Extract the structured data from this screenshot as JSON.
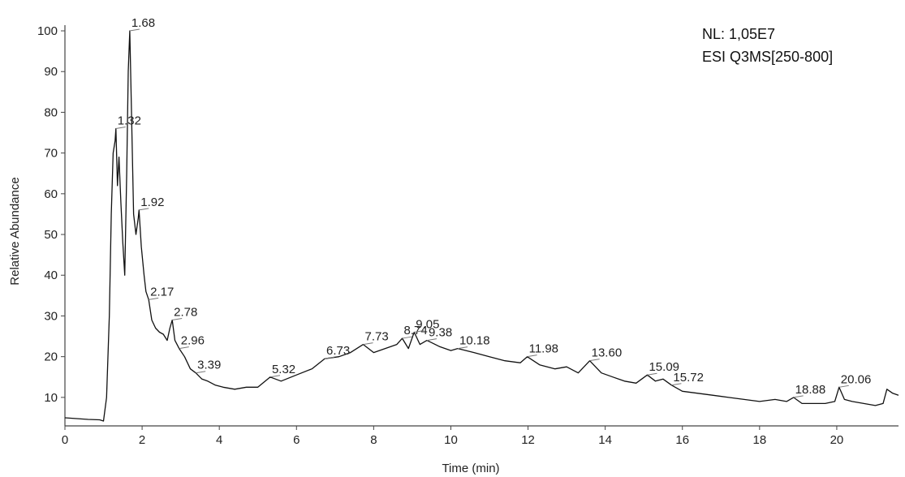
{
  "chart_data": {
    "type": "line",
    "title": "",
    "xlabel": "Time (min)",
    "ylabel": "Relative Abundance",
    "xlim": [
      0,
      21.6
    ],
    "ylim": [
      3,
      101
    ],
    "x_ticks": [
      0,
      2,
      4,
      6,
      8,
      10,
      12,
      14,
      16,
      18,
      20
    ],
    "y_ticks": [
      10,
      20,
      30,
      40,
      50,
      60,
      70,
      80,
      90,
      100
    ],
    "grid": false,
    "legend": "none",
    "annotations": [
      "NL: 1,05E7",
      "ESI Q3MS[250-800]"
    ],
    "line_color": "#111111",
    "peak_labels": [
      {
        "x": 1.32,
        "y": 76,
        "text": "1.32"
      },
      {
        "x": 1.68,
        "y": 100,
        "text": "1.68"
      },
      {
        "x": 1.92,
        "y": 56,
        "text": "1.92"
      },
      {
        "x": 2.17,
        "y": 34,
        "text": "2.17"
      },
      {
        "x": 2.78,
        "y": 29,
        "text": "2.78"
      },
      {
        "x": 2.96,
        "y": 22,
        "text": "2.96"
      },
      {
        "x": 3.39,
        "y": 16,
        "text": "3.39"
      },
      {
        "x": 5.32,
        "y": 15,
        "text": "5.32"
      },
      {
        "x": 6.73,
        "y": 19.5,
        "text": "6.73"
      },
      {
        "x": 7.73,
        "y": 23,
        "text": "7.73"
      },
      {
        "x": 8.74,
        "y": 24.5,
        "text": "8.74"
      },
      {
        "x": 9.05,
        "y": 26,
        "text": "9.05"
      },
      {
        "x": 9.38,
        "y": 24,
        "text": "9.38"
      },
      {
        "x": 10.18,
        "y": 22,
        "text": "10.18"
      },
      {
        "x": 11.98,
        "y": 20,
        "text": "11.98"
      },
      {
        "x": 13.6,
        "y": 19,
        "text": "13.60"
      },
      {
        "x": 15.09,
        "y": 15.5,
        "text": "15.09"
      },
      {
        "x": 15.72,
        "y": 13,
        "text": "15.72"
      },
      {
        "x": 18.88,
        "y": 10,
        "text": "18.88"
      },
      {
        "x": 20.06,
        "y": 12.5,
        "text": "20.06"
      }
    ],
    "series": [
      {
        "x": [
          0,
          0.3,
          0.6,
          0.9,
          1.0,
          1.08,
          1.15,
          1.2,
          1.25,
          1.3,
          1.32,
          1.36,
          1.4,
          1.45,
          1.5,
          1.55,
          1.6,
          1.64,
          1.68,
          1.72,
          1.78,
          1.84,
          1.9,
          1.92,
          1.98,
          2.05,
          2.1,
          2.17,
          2.25,
          2.35,
          2.45,
          2.55,
          2.65,
          2.72,
          2.78,
          2.85,
          2.96,
          3.1,
          3.25,
          3.39,
          3.55,
          3.7,
          3.9,
          4.1,
          4.4,
          4.7,
          5.0,
          5.32,
          5.6,
          6.0,
          6.4,
          6.73,
          7.1,
          7.4,
          7.73,
          8.0,
          8.3,
          8.6,
          8.74,
          8.9,
          9.05,
          9.2,
          9.38,
          9.7,
          10.0,
          10.18,
          10.6,
          11.0,
          11.4,
          11.8,
          11.98,
          12.3,
          12.7,
          13.0,
          13.3,
          13.6,
          13.9,
          14.2,
          14.5,
          14.8,
          15.09,
          15.3,
          15.5,
          15.72,
          16.0,
          16.4,
          16.8,
          17.2,
          17.6,
          18.0,
          18.4,
          18.7,
          18.88,
          19.1,
          19.4,
          19.7,
          19.95,
          20.06,
          20.2,
          20.4,
          20.7,
          21.0,
          21.2,
          21.3,
          21.45,
          21.6
        ],
        "y": [
          5,
          4.8,
          4.6,
          4.5,
          4.2,
          10,
          30,
          55,
          70,
          73,
          76,
          62,
          69,
          58,
          48,
          40,
          65,
          90,
          100,
          82,
          55,
          50,
          54,
          56,
          47,
          40,
          36,
          34,
          29,
          27,
          26,
          25.5,
          24,
          27,
          29,
          24,
          22,
          20,
          17,
          16,
          14.5,
          14,
          13,
          12.5,
          12,
          12.5,
          12.5,
          15,
          14,
          15.5,
          17,
          19.5,
          20,
          21,
          23,
          21,
          22,
          23,
          24.5,
          22,
          26,
          23,
          24,
          22.5,
          21.5,
          22,
          21,
          20,
          19,
          18.5,
          20,
          18,
          17,
          17.5,
          16,
          19,
          16,
          15,
          14,
          13.5,
          15.5,
          14,
          14.5,
          13,
          11.5,
          11,
          10.5,
          10,
          9.5,
          9,
          9.5,
          9,
          10,
          8.5,
          8.5,
          8.5,
          9,
          12.5,
          9.5,
          9,
          8.5,
          8,
          8.5,
          12,
          11,
          10.5
        ]
      }
    ]
  }
}
